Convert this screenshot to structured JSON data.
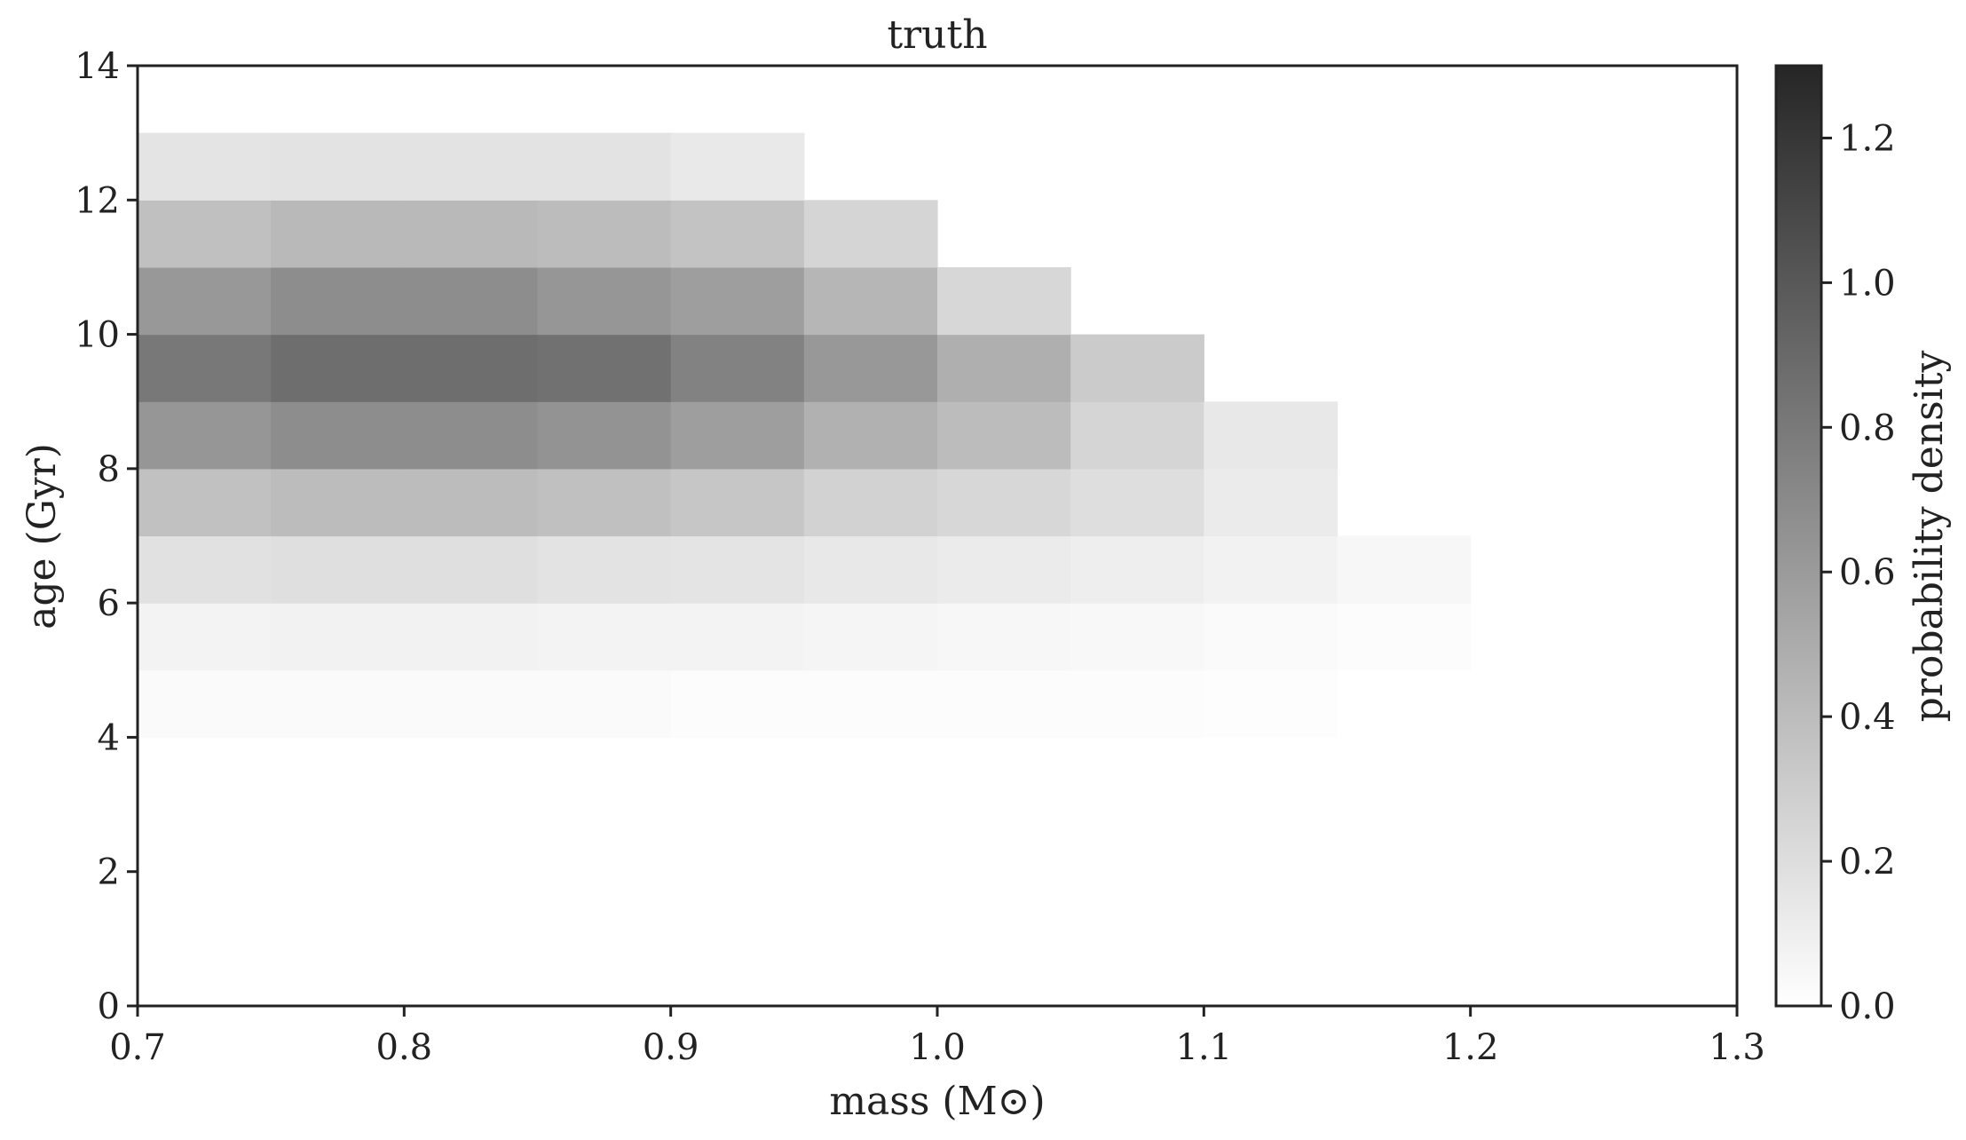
{
  "chart_data": {
    "type": "heatmap",
    "title": "truth",
    "xlabel": "mass (M⊙)",
    "ylabel": "age (Gyr)",
    "xlim": [
      0.7,
      1.3
    ],
    "ylim": [
      0,
      14
    ],
    "x_bin_edges": [
      0.7,
      0.75,
      0.8,
      0.85,
      0.9,
      0.95,
      1.0,
      1.05,
      1.1,
      1.15,
      1.2
    ],
    "y_bin_edges": [
      4,
      5,
      6,
      7,
      8,
      9,
      10,
      11,
      12,
      13,
      14
    ],
    "x_ticks": [
      "0.7",
      "0.8",
      "0.9",
      "1.0",
      "1.1",
      "1.2",
      "1.3"
    ],
    "y_ticks": [
      "0",
      "2",
      "4",
      "6",
      "8",
      "10",
      "12",
      "14"
    ],
    "colormap": "greys",
    "values": [
      [
        0.03,
        0.03,
        0.03,
        0.03,
        0.02,
        0.02,
        0.02,
        0.02,
        0.01,
        0.0
      ],
      [
        0.07,
        0.08,
        0.08,
        0.07,
        0.07,
        0.06,
        0.05,
        0.04,
        0.03,
        0.02
      ],
      [
        0.18,
        0.19,
        0.19,
        0.17,
        0.16,
        0.14,
        0.12,
        0.1,
        0.08,
        0.05
      ],
      [
        0.37,
        0.4,
        0.4,
        0.38,
        0.34,
        0.27,
        0.24,
        0.2,
        0.12,
        0.0
      ],
      [
        0.63,
        0.68,
        0.68,
        0.65,
        0.58,
        0.47,
        0.4,
        0.25,
        0.14,
        0.0
      ],
      [
        0.81,
        0.87,
        0.87,
        0.85,
        0.75,
        0.62,
        0.48,
        0.31,
        0.0,
        0.0
      ],
      [
        0.62,
        0.68,
        0.68,
        0.63,
        0.58,
        0.44,
        0.24,
        0.0,
        0.0,
        0.0
      ],
      [
        0.38,
        0.42,
        0.42,
        0.4,
        0.36,
        0.25,
        0.0,
        0.0,
        0.0,
        0.0
      ],
      [
        0.16,
        0.17,
        0.17,
        0.17,
        0.13,
        0.0,
        0.0,
        0.0,
        0.0,
        0.0
      ],
      [
        0.0,
        0.0,
        0.0,
        0.0,
        0.0,
        0.0,
        0.0,
        0.0,
        0.0,
        0.0
      ]
    ],
    "colorbar": {
      "label": "probability density",
      "range": [
        0.0,
        1.3
      ],
      "ticks": [
        "0.0",
        "0.2",
        "0.4",
        "0.6",
        "0.8",
        "1.0",
        "1.2"
      ]
    },
    "grid": false,
    "legend": "none"
  }
}
